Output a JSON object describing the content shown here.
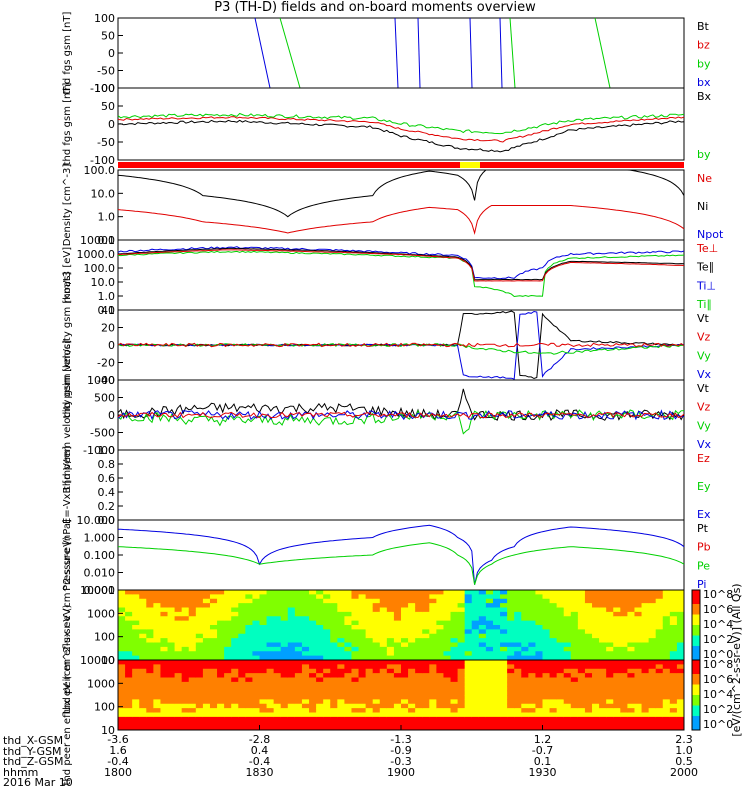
{
  "title": "P3 (TH-D) fields and on-board moments overview",
  "colors": {
    "black": "#000000",
    "red": "#e00000",
    "green": "#00d000",
    "blue": "#0000e0",
    "bar_red": "#ff0000",
    "bar_yellow": "#ffff00"
  },
  "time_ticks": [
    "1800",
    "1830",
    "1900",
    "1930",
    "2000"
  ],
  "footer": {
    "row_labels": [
      "thd_X-GSM",
      "thd_Y-GSM",
      "thd_Z-GSM",
      "hhmm",
      "2016 Mar 10"
    ],
    "x_vals": [
      "-3.6",
      "-2.8",
      "-1.3",
      "1.2",
      "2.3"
    ],
    "y_vals": [
      "1.6",
      "0.4",
      "-0.9",
      "-0.7",
      "1.0"
    ],
    "z_vals": [
      "-0.4",
      "-0.4",
      "-0.3",
      "0.1",
      "0.5"
    ]
  },
  "colorbar_label": "[eV/(cm^2-s-sr-eV)] (All Qs)",
  "colorbar1_ticks": [
    "10^8",
    "10^6",
    "10^4",
    "10^2",
    "10^0"
  ],
  "colorbar2_ticks": [
    "10^8",
    "10^6",
    "10^4",
    "10^2",
    "10^0"
  ],
  "chart_data": [
    {
      "type": "line",
      "ylabel": "thd fgs gsm [nT]",
      "yticks": [
        "100",
        "50",
        "0",
        "-50",
        "-100"
      ],
      "ylim": [
        -100,
        100
      ],
      "legend": [
        "Bt",
        "bz",
        "by",
        "bx"
      ],
      "series": [
        {
          "name": "Bt",
          "color": "#000000"
        },
        {
          "name": "bz",
          "color": "#e00000"
        },
        {
          "name": "by",
          "color": "#00d000"
        },
        {
          "name": "bx",
          "color": "#0000e0"
        }
      ]
    },
    {
      "type": "line",
      "ylabel": "thd fgs gsm [nT]",
      "yticks": [
        "100",
        "50",
        "0",
        "-50",
        "-100"
      ],
      "ylim": [
        -120,
        120
      ],
      "legend": [
        "Bx",
        "by"
      ],
      "series": [
        {
          "name": "Bx",
          "color": "#000000",
          "x": [
            0,
            20,
            45,
            50,
            60,
            68,
            75,
            80,
            100
          ],
          "values": [
            0,
            10,
            -10,
            -40,
            -80,
            -90,
            -50,
            -20,
            10
          ]
        },
        {
          "name": "by",
          "color": "#00d000"
        }
      ]
    },
    {
      "type": "bar",
      "ylabel": "",
      "legend": [],
      "note": "mode bar"
    },
    {
      "type": "line",
      "ylabel": "Density [cm^-3]",
      "yticks": [
        "100.0",
        "10.0",
        "1.0",
        "0.1"
      ],
      "log": true,
      "ylim": [
        0.1,
        100
      ],
      "legend": [
        "Ne",
        "Ni",
        "Npot"
      ],
      "series": [
        {
          "name": "Ni",
          "color": "#000000",
          "x": [
            0,
            15,
            30,
            45,
            55,
            60,
            63,
            66,
            80,
            100
          ],
          "values": [
            60,
            8,
            1,
            8,
            90,
            60,
            5,
            150,
            200,
            8
          ]
        },
        {
          "name": "Ne",
          "color": "#e00000",
          "x": [
            0,
            15,
            30,
            45,
            55,
            60,
            63,
            66,
            80,
            100
          ],
          "values": [
            2,
            0.6,
            0.2,
            0.6,
            2.5,
            2,
            0.2,
            3,
            3,
            0.3
          ]
        }
      ]
    },
    {
      "type": "line",
      "ylabel": "moat3 [eV]",
      "yticks": [
        "10000",
        "1000.0",
        "100.0",
        "10.0",
        "1.0",
        "0.1"
      ],
      "log": true,
      "ylim": [
        0.1,
        10000
      ],
      "legend": [
        "Te⊥",
        "Te∥",
        "Ti⊥",
        "Ti∥"
      ],
      "series": [
        {
          "name": "Te⊥",
          "color": "#e00000"
        },
        {
          "name": "Te∥",
          "color": "#000000"
        },
        {
          "name": "Ti⊥",
          "color": "#0000e0"
        },
        {
          "name": "Ti∥",
          "color": "#00d000"
        }
      ]
    },
    {
      "type": "line",
      "ylabel": "thd peim velocity gsm [km/s]",
      "yticks": [
        "40",
        "20",
        "0",
        "-20",
        "-40"
      ],
      "ylim": [
        -40,
        40
      ],
      "legend": [
        "Vt",
        "Vz",
        "Vy",
        "Vx"
      ],
      "series": [
        {
          "name": "Vt",
          "color": "#000000"
        },
        {
          "name": "Vz",
          "color": "#e00000"
        },
        {
          "name": "Vy",
          "color": "#00d000"
        },
        {
          "name": "Vx",
          "color": "#0000e0"
        }
      ]
    },
    {
      "type": "line",
      "ylabel": "thd peem velocity gsm [km/s]",
      "yticks": [
        "1000",
        "500",
        "0",
        "-500",
        "-1000"
      ],
      "ylim": [
        -1000,
        1000
      ],
      "legend": [
        "Vt",
        "Vz",
        "Vy",
        "Vx"
      ],
      "series": [
        {
          "name": "Vt",
          "color": "#000000"
        },
        {
          "name": "Vz",
          "color": "#e00000"
        },
        {
          "name": "Vy",
          "color": "#00d000"
        },
        {
          "name": "Vx",
          "color": "#0000e0"
        }
      ]
    },
    {
      "type": "line",
      "ylabel": "E=-VxB [mV/m]",
      "yticks": [
        "1.0",
        "0.8",
        "0.6",
        "0.4",
        "0.2",
        "0.0"
      ],
      "ylim": [
        0,
        1
      ],
      "legend": [
        "Ez",
        "Ey",
        "Ex"
      ],
      "series": [
        {
          "name": "Ez",
          "color": "#e00000"
        },
        {
          "name": "Ey",
          "color": "#00d000"
        },
        {
          "name": "Ex",
          "color": "#0000e0"
        }
      ]
    },
    {
      "type": "line",
      "ylabel": "Pressure [nPa]",
      "yticks": [
        "10.000",
        "1.000",
        "0.100",
        "0.010",
        "0.001"
      ],
      "log": true,
      "ylim": [
        0.001,
        10
      ],
      "legend": [
        "Pt",
        "Pb",
        "Pe",
        "Pi"
      ],
      "series": [
        {
          "name": "Pi",
          "color": "#0000e0",
          "x": [
            0,
            25,
            45,
            55,
            60,
            63,
            66,
            70,
            80,
            100
          ],
          "values": [
            3,
            0.03,
            1,
            5,
            1,
            0.002,
            0.05,
            0.3,
            4,
            0.3
          ]
        },
        {
          "name": "Pe",
          "color": "#00d000",
          "x": [
            0,
            25,
            45,
            55,
            60,
            63,
            66,
            70,
            80,
            100
          ],
          "values": [
            0.3,
            0.03,
            0.1,
            0.5,
            0.1,
            0.002,
            0.03,
            0.1,
            0.3,
            0.03
          ]
        }
      ]
    },
    {
      "type": "heatmap",
      "ylabel": "thd peir en eflux eV (cm^2-s-sr-eV)",
      "yticks": [
        "10000",
        "1000",
        "100",
        "10"
      ]
    },
    {
      "type": "heatmap",
      "ylabel": "thd peer en eflux eV (cm^2-s-sr-eV)",
      "yticks": [
        "10000",
        "1000",
        "100",
        "10"
      ]
    }
  ]
}
